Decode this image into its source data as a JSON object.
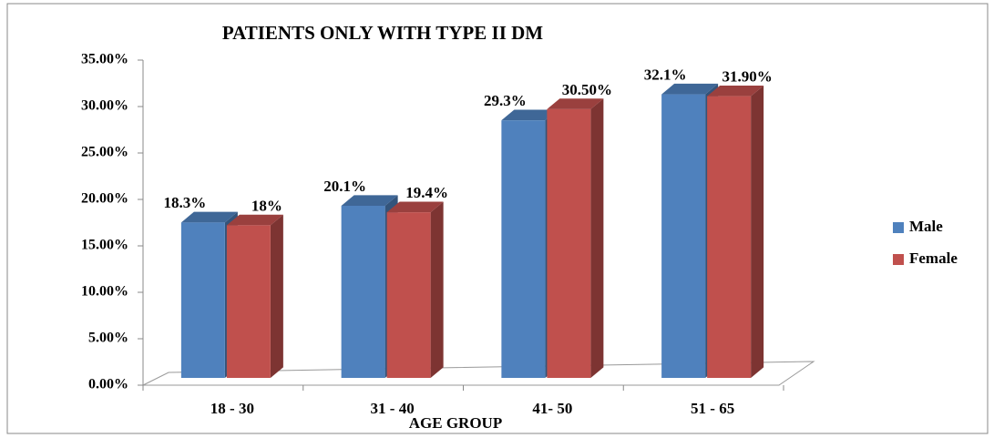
{
  "chart_data": {
    "type": "bar3d",
    "title": "PATIENTS ONLY WITH  TYPE II DM",
    "x_label": "AGE GROUP",
    "categories": [
      "18 - 30",
      "31 - 40",
      "41- 50",
      "51 - 65"
    ],
    "series": [
      {
        "name": "Male",
        "color": "#4f81bd",
        "values": [
          18.3,
          20.1,
          29.3,
          32.1
        ],
        "value_labels": [
          "18.3%",
          "20.1%",
          "29.3%",
          "32.1%"
        ]
      },
      {
        "name": "Female",
        "color": "#c0504d",
        "values": [
          18,
          19.4,
          30.5,
          31.9
        ],
        "value_labels": [
          "18%",
          "19.4%",
          "30.50%",
          "31.90%"
        ]
      }
    ],
    "ylim": [
      0,
      35
    ],
    "yticks": [
      {
        "value": 0,
        "label": "0.00%"
      },
      {
        "value": 5,
        "label": "5.00%"
      },
      {
        "value": 10,
        "label": "10.00%"
      },
      {
        "value": 15,
        "label": "15.00%"
      },
      {
        "value": 20,
        "label": "20.00%"
      },
      {
        "value": 25,
        "label": "25.00%"
      },
      {
        "value": 30,
        "label": "30.00%"
      },
      {
        "value": 35,
        "label": "35.00%"
      }
    ],
    "legend": "right"
  }
}
